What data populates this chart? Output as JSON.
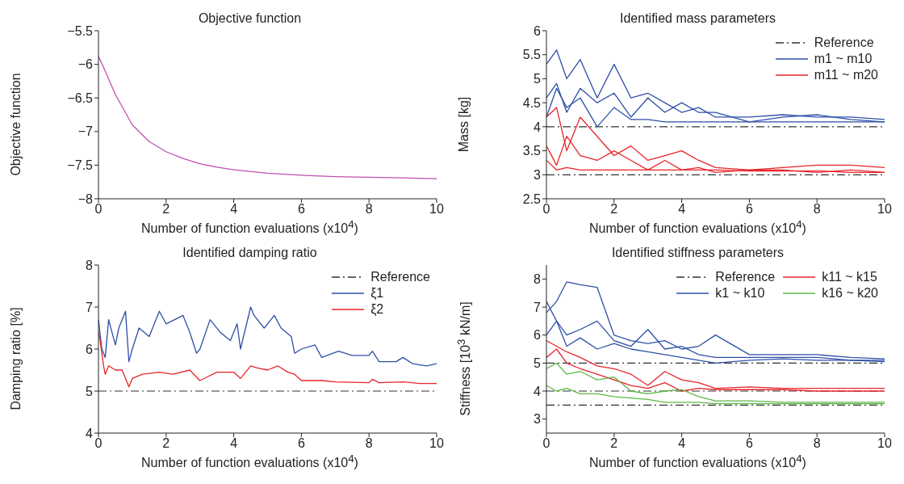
{
  "chart_data": [
    {
      "type": "line",
      "title": "Objective function",
      "xlabel": "Number of function evaluations (x10$^{4}$)",
      "ylabel": "Objective function",
      "xlim": [
        0,
        10
      ],
      "xticks": [
        0,
        2,
        4,
        6,
        8,
        10
      ],
      "ylim": [
        -8,
        -5.5
      ],
      "yticks": [
        -8,
        -7.5,
        -7,
        -6.5,
        -6,
        -5.5
      ],
      "series": [
        {
          "color": "#c050b0",
          "x": [
            0,
            0.2,
            0.5,
            1,
            1.5,
            2,
            2.5,
            3,
            3.5,
            4,
            5,
            6,
            7,
            8,
            9,
            10
          ],
          "values": [
            -5.88,
            -6.1,
            -6.45,
            -6.9,
            -7.15,
            -7.3,
            -7.4,
            -7.48,
            -7.53,
            -7.57,
            -7.62,
            -7.65,
            -7.67,
            -7.68,
            -7.69,
            -7.7
          ]
        }
      ]
    },
    {
      "type": "line",
      "title": "Identified mass parameters",
      "xlabel": "Number of function evaluations (x10$^{4}$)",
      "ylabel": "Mass [kg]",
      "xlim": [
        0,
        10
      ],
      "xticks": [
        0,
        2,
        4,
        6,
        8,
        10
      ],
      "ylim": [
        2.5,
        6
      ],
      "yticks": [
        2.5,
        3,
        3.5,
        4,
        4.5,
        5,
        5.5,
        6
      ],
      "legend": "top right",
      "ref_lines": [
        {
          "axis": "y",
          "value": 4,
          "label": "Reference",
          "color": "#333333",
          "line_style": "dashed"
        },
        {
          "axis": "y",
          "value": 3,
          "color": "#333333",
          "line_style": "dashed"
        }
      ],
      "series": [
        {
          "name": "m1 ~ m10",
          "color": "#2e4fa8",
          "x": [
            0,
            0.3,
            0.6,
            1,
            1.5,
            2,
            2.5,
            3,
            3.5,
            4,
            4.5,
            5,
            6,
            7,
            8,
            9,
            10
          ],
          "values": [
            5.3,
            5.6,
            5.0,
            5.4,
            4.6,
            5.3,
            4.6,
            4.7,
            4.5,
            4.3,
            4.4,
            4.2,
            4.2,
            4.25,
            4.2,
            4.2,
            4.15
          ]
        },
        {
          "color": "#2e4fa8",
          "x": [
            0,
            0.3,
            0.6,
            1,
            1.5,
            2,
            2.5,
            3,
            3.5,
            4,
            4.5,
            5,
            6,
            7,
            8,
            9,
            10
          ],
          "values": [
            4.6,
            4.9,
            4.3,
            4.8,
            4.5,
            4.7,
            4.2,
            4.6,
            4.3,
            4.5,
            4.3,
            4.3,
            4.1,
            4.2,
            4.25,
            4.15,
            4.1
          ]
        },
        {
          "color": "#2e4fa8",
          "x": [
            0,
            0.3,
            0.6,
            1,
            1.5,
            2,
            2.5,
            3,
            3.5,
            4,
            4.5,
            5,
            6,
            7,
            8,
            9,
            10
          ],
          "values": [
            4.2,
            4.8,
            4.4,
            4.6,
            4.0,
            4.4,
            4.15,
            4.15,
            4.1,
            4.1,
            4.1,
            4.1,
            4.1,
            4.1,
            4.1,
            4.1,
            4.1
          ]
        },
        {
          "name": "m11 ~ m20",
          "color": "#e8242a",
          "x": [
            0,
            0.3,
            0.6,
            1,
            1.5,
            2,
            2.5,
            3,
            3.5,
            4,
            4.5,
            5,
            6,
            7,
            8,
            9,
            10
          ],
          "values": [
            4.2,
            4.4,
            3.5,
            4.2,
            3.8,
            3.4,
            3.6,
            3.3,
            3.4,
            3.5,
            3.3,
            3.15,
            3.1,
            3.15,
            3.2,
            3.2,
            3.15
          ]
        },
        {
          "color": "#e8242a",
          "x": [
            0,
            0.3,
            0.6,
            1,
            1.5,
            2,
            2.5,
            3,
            3.5,
            4,
            4.5,
            5,
            6,
            7,
            8,
            9,
            10
          ],
          "values": [
            3.6,
            3.2,
            3.8,
            3.4,
            3.3,
            3.5,
            3.3,
            3.1,
            3.3,
            3.1,
            3.15,
            3.05,
            3.1,
            3.1,
            3.05,
            3.1,
            3.05
          ]
        },
        {
          "color": "#e8242a",
          "x": [
            0,
            0.3,
            0.6,
            1,
            1.5,
            2,
            2.5,
            3,
            3.5,
            4,
            4.5,
            5,
            6,
            7,
            8,
            9,
            10
          ],
          "values": [
            3.3,
            3.1,
            3.15,
            3.1,
            3.1,
            3.1,
            3.1,
            3.1,
            3.1,
            3.1,
            3.1,
            3.1,
            3.08,
            3.08,
            3.08,
            3.05,
            3.05
          ]
        }
      ]
    },
    {
      "type": "line",
      "title": "Identified damping ratio",
      "xlabel": "Number of function evaluations (x10$^{4}$)",
      "ylabel": "Damping ratio [%]",
      "xlim": [
        0,
        10
      ],
      "xticks": [
        0,
        2,
        4,
        6,
        8,
        10
      ],
      "ylim": [
        4,
        8
      ],
      "yticks": [
        4,
        5,
        6,
        7,
        8
      ],
      "legend": "top right",
      "ref_lines": [
        {
          "axis": "y",
          "value": 5,
          "label": "Reference",
          "color": "#333333",
          "line_style": "dashed"
        }
      ],
      "series": [
        {
          "name": "ξ1",
          "color": "#2e4fa8",
          "x": [
            0,
            0.1,
            0.2,
            0.3,
            0.5,
            0.6,
            0.8,
            0.9,
            1.0,
            1.2,
            1.5,
            1.8,
            2.0,
            2.5,
            2.7,
            2.9,
            3.0,
            3.3,
            3.6,
            3.9,
            4.1,
            4.2,
            4.5,
            4.6,
            4.9,
            5.2,
            5.4,
            5.7,
            5.8,
            6.0,
            6.4,
            6.6,
            7.1,
            7.5,
            8.0,
            8.1,
            8.3,
            8.8,
            9.0,
            9.3,
            9.7,
            10
          ],
          "values": [
            6.7,
            6.0,
            5.8,
            6.7,
            6.1,
            6.5,
            6.9,
            5.7,
            6.0,
            6.5,
            6.3,
            6.9,
            6.6,
            6.8,
            6.4,
            5.9,
            6.0,
            6.7,
            6.4,
            6.2,
            6.6,
            6.0,
            7.0,
            6.8,
            6.5,
            6.8,
            6.5,
            6.3,
            5.9,
            6.0,
            6.1,
            5.8,
            5.95,
            5.85,
            5.85,
            5.95,
            5.7,
            5.7,
            5.8,
            5.65,
            5.6,
            5.65
          ]
        },
        {
          "name": "ξ2",
          "color": "#e8242a",
          "x": [
            0,
            0.05,
            0.15,
            0.2,
            0.3,
            0.5,
            0.7,
            0.9,
            1.0,
            1.3,
            1.8,
            2.2,
            2.7,
            3.0,
            3.5,
            4.0,
            4.2,
            4.5,
            4.7,
            5.0,
            5.3,
            5.6,
            5.8,
            6.0,
            6.6,
            7.0,
            8.0,
            8.1,
            8.3,
            9.0,
            9.5,
            10
          ],
          "values": [
            6.4,
            6.2,
            5.6,
            5.4,
            5.6,
            5.5,
            5.5,
            5.1,
            5.3,
            5.4,
            5.45,
            5.4,
            5.5,
            5.25,
            5.45,
            5.45,
            5.3,
            5.6,
            5.55,
            5.5,
            5.6,
            5.45,
            5.4,
            5.25,
            5.25,
            5.22,
            5.2,
            5.28,
            5.2,
            5.22,
            5.18,
            5.18
          ]
        }
      ]
    },
    {
      "type": "line",
      "title": "Identified stiffness parameters",
      "xlabel": "Number of function evaluations (x10$^{4}$)",
      "ylabel": "Stiffness [10$^{3}$ kN/m]",
      "xlim": [
        0,
        10
      ],
      "xticks": [
        0,
        2,
        4,
        6,
        8,
        10
      ],
      "ylim": [
        2.5,
        8.5
      ],
      "yticks": [
        3,
        4,
        5,
        6,
        7,
        8
      ],
      "legend": "top right",
      "ref_lines": [
        {
          "axis": "y",
          "value": 5,
          "label": "Reference",
          "color": "#333333",
          "line_style": "dashed"
        },
        {
          "axis": "y",
          "value": 4,
          "color": "#333333",
          "line_style": "dashed"
        },
        {
          "axis": "y",
          "value": 3.5,
          "color": "#333333",
          "line_style": "dashed"
        }
      ],
      "series": [
        {
          "name": "k1 ~ k10",
          "color": "#2e4fa8",
          "x": [
            0,
            0.3,
            0.6,
            1,
            1.5,
            2,
            2.5,
            3,
            3.5,
            4,
            4.5,
            5,
            6,
            7,
            8,
            9,
            10
          ],
          "values": [
            6.8,
            7.2,
            7.9,
            7.8,
            7.7,
            6.0,
            5.8,
            5.7,
            5.8,
            5.5,
            5.6,
            6.0,
            5.3,
            5.3,
            5.3,
            5.2,
            5.15
          ]
        },
        {
          "color": "#2e4fa8",
          "x": [
            0,
            0.3,
            0.6,
            1,
            1.5,
            2,
            2.5,
            3,
            3.5,
            4,
            4.5,
            5,
            6,
            7,
            8,
            9,
            10
          ],
          "values": [
            7.2,
            6.5,
            6.0,
            6.2,
            6.5,
            5.8,
            5.6,
            6.2,
            5.5,
            5.6,
            5.3,
            5.2,
            5.2,
            5.2,
            5.2,
            5.1,
            5.1
          ]
        },
        {
          "color": "#2e4fa8",
          "x": [
            0,
            0.3,
            0.6,
            1,
            1.5,
            2,
            2.5,
            3,
            3.5,
            4,
            4.5,
            5,
            6,
            7,
            8,
            9,
            10
          ],
          "values": [
            6.0,
            6.5,
            5.6,
            5.9,
            5.5,
            5.7,
            5.5,
            5.4,
            5.3,
            5.2,
            5.1,
            5.0,
            5.1,
            5.15,
            5.1,
            5.1,
            5.05
          ]
        },
        {
          "name": "k11 ~ k15",
          "color": "#e8242a",
          "x": [
            0,
            0.3,
            0.6,
            1,
            1.5,
            2,
            2.5,
            3,
            3.5,
            4,
            4.5,
            5,
            6,
            7,
            8,
            9,
            10
          ],
          "values": [
            5.8,
            5.6,
            5.4,
            5.2,
            4.9,
            4.8,
            4.6,
            4.2,
            4.7,
            4.4,
            4.3,
            4.1,
            4.15,
            4.1,
            4.1,
            4.1,
            4.1
          ]
        },
        {
          "color": "#e8242a",
          "x": [
            0,
            0.3,
            0.6,
            1,
            1.5,
            2,
            2.5,
            3,
            3.5,
            4,
            4.5,
            5,
            6,
            7,
            8,
            9,
            10
          ],
          "values": [
            5.2,
            5.5,
            5.0,
            4.8,
            4.6,
            4.4,
            4.2,
            4.1,
            4.3,
            4.0,
            4.1,
            4.05,
            4.05,
            4.05,
            4.0,
            4.0,
            4.0
          ]
        },
        {
          "name": "k16 ~ k20",
          "color": "#5cb845",
          "x": [
            0,
            0.3,
            0.6,
            1,
            1.5,
            2,
            2.5,
            3,
            3.5,
            4,
            4.5,
            5,
            6,
            7,
            8,
            9,
            10
          ],
          "values": [
            4.8,
            5.0,
            4.6,
            4.7,
            4.4,
            4.5,
            4.0,
            3.9,
            4.0,
            4.05,
            3.8,
            3.65,
            3.65,
            3.6,
            3.6,
            3.6,
            3.6
          ]
        },
        {
          "color": "#5cb845",
          "x": [
            0,
            0.3,
            0.6,
            1,
            1.5,
            2,
            2.5,
            3,
            3.5,
            4,
            4.5,
            5,
            6,
            7,
            8,
            9,
            10
          ],
          "values": [
            4.2,
            4.0,
            4.1,
            3.9,
            3.9,
            3.8,
            3.75,
            3.7,
            3.6,
            3.6,
            3.6,
            3.55,
            3.55,
            3.55,
            3.55,
            3.55,
            3.55
          ]
        }
      ]
    }
  ]
}
